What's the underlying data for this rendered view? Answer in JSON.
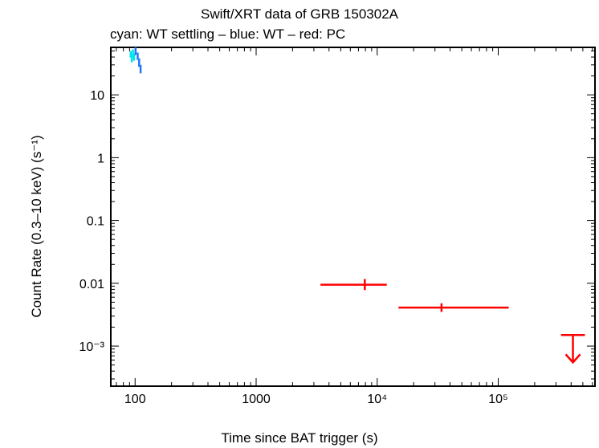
{
  "chart_data": {
    "type": "scatter",
    "title": "Swift/XRT data of GRB 150302A",
    "subtitle": "cyan: WT settling – blue: WT – red: PC",
    "xlabel": "Time since BAT trigger (s)",
    "ylabel": "Count Rate (0.3–10 keV) (s⁻¹)",
    "xscale": "log",
    "yscale": "log",
    "xlim": [
      63,
      630000
    ],
    "ylim": [
      0.00023,
      57
    ],
    "x_ticks": [
      {
        "value": 100,
        "label": "100"
      },
      {
        "value": 1000,
        "label": "1000"
      },
      {
        "value": 10000,
        "label": "10⁴"
      },
      {
        "value": 100000,
        "label": "10⁵"
      }
    ],
    "y_ticks": [
      {
        "value": 10,
        "label": "10"
      },
      {
        "value": 1,
        "label": "1"
      },
      {
        "value": 0.1,
        "label": "0.1"
      },
      {
        "value": 0.01,
        "label": "0.01"
      },
      {
        "value": 0.001,
        "label": "10⁻³"
      }
    ],
    "series": [
      {
        "color": "#00e5ee",
        "points": [
          {
            "x": 92,
            "x_lo": 91,
            "x_hi": 93,
            "y": 44,
            "y_lo": 39,
            "y_hi": 50
          },
          {
            "x": 94,
            "x_lo": 93,
            "x_hi": 95,
            "y": 38,
            "y_lo": 33,
            "y_hi": 44
          },
          {
            "x": 96,
            "x_lo": 95,
            "x_hi": 97,
            "y": 46,
            "y_lo": 40,
            "y_hi": 53
          },
          {
            "x": 98,
            "x_lo": 97,
            "x_hi": 99,
            "y": 40,
            "y_lo": 35,
            "y_hi": 46
          }
        ]
      },
      {
        "color": "#1e78ff",
        "points": [
          {
            "x": 101,
            "x_lo": 100,
            "x_hi": 102,
            "y": 50,
            "y_lo": 44,
            "y_hi": 57
          },
          {
            "x": 105,
            "x_lo": 104,
            "x_hi": 106,
            "y": 41,
            "y_lo": 36,
            "y_hi": 47
          },
          {
            "x": 108,
            "x_lo": 107,
            "x_hi": 109,
            "y": 33,
            "y_lo": 28,
            "y_hi": 38
          },
          {
            "x": 111,
            "x_lo": 110,
            "x_hi": 112,
            "y": 26,
            "y_lo": 22,
            "y_hi": 30
          }
        ]
      },
      {
        "color": "#ff0000",
        "points": [
          {
            "x": 7900,
            "x_lo": 3400,
            "x_hi": 12000,
            "y": 0.0095,
            "y_lo": 0.0078,
            "y_hi": 0.0117
          },
          {
            "x": 34000,
            "x_lo": 15000,
            "x_hi": 122000,
            "y": 0.0041,
            "y_lo": 0.0035,
            "y_hi": 0.0048
          }
        ],
        "upper_limits": [
          {
            "x_lo": 330000,
            "x_hi": 520000,
            "y": 0.0015,
            "to": 0.00055
          }
        ]
      }
    ]
  }
}
